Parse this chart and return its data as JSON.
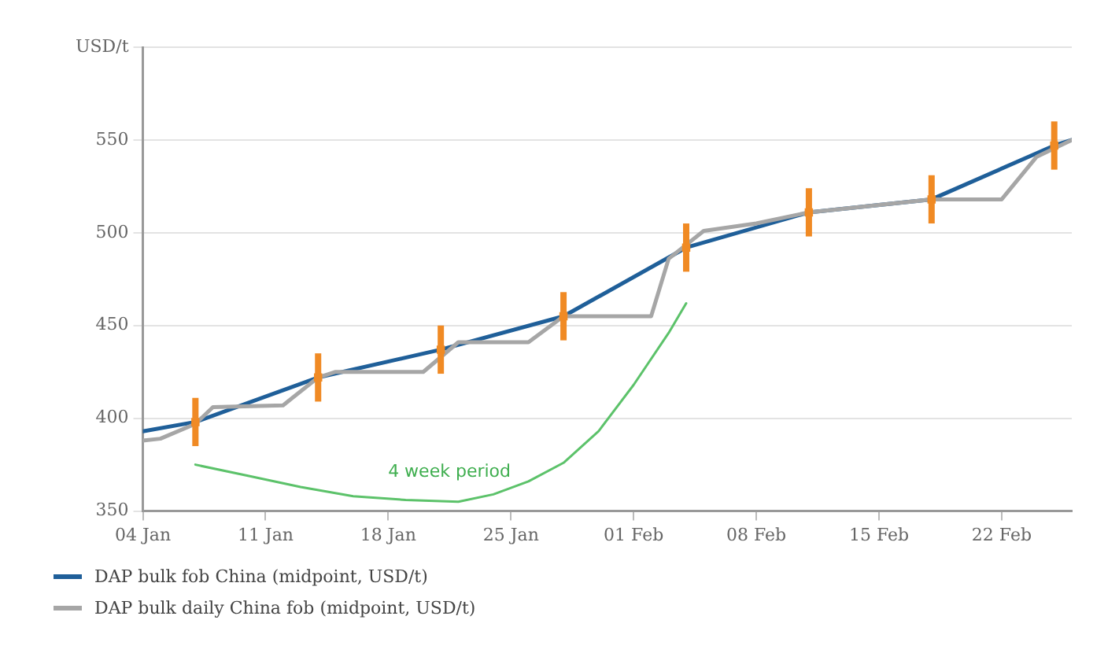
{
  "chart_data": {
    "type": "line",
    "xlim": [
      "--01-04",
      "--02-26"
    ],
    "xticks": [
      {
        "value": "--01-04",
        "label": "04 Jan"
      },
      {
        "value": "--01-11",
        "label": "11 Jan"
      },
      {
        "value": "--01-18",
        "label": "18 Jan"
      },
      {
        "value": "--01-25",
        "label": "25 Jan"
      },
      {
        "value": "--02-01",
        "label": "01 Feb"
      },
      {
        "value": "--02-08",
        "label": "08 Feb"
      },
      {
        "value": "--02-15",
        "label": "15 Feb"
      },
      {
        "value": "--02-22",
        "label": "22 Feb"
      }
    ],
    "ylim": [
      350,
      600
    ],
    "yticks": [
      350,
      400,
      450,
      500,
      550,
      {
        "value": 600,
        "label": "USD/t"
      }
    ],
    "grid": "y",
    "legend": "bottom",
    "annotations": [
      "4 week period"
    ],
    "series": [
      {
        "name": "DAP bulk daily China fob (midpoint, USD/t)",
        "color": "#a6a6a6",
        "x": [
          "--01-04",
          "--01-05",
          "--01-07",
          "--01-08",
          "--01-12",
          "--01-14",
          "--01-15",
          "--01-20",
          "--01-22",
          "--01-26",
          "--01-28",
          "--02-02",
          "--02-03",
          "--02-05",
          "--02-08",
          "--02-11",
          "--02-18",
          "--02-22",
          "--02-24",
          "--02-26"
        ],
        "values": [
          388,
          389,
          397,
          406,
          407,
          422,
          425,
          425,
          441,
          441,
          455,
          455,
          486,
          501,
          505,
          511,
          518,
          518,
          541,
          550
        ]
      },
      {
        "name": "DAP bulk fob China (midpoint, USD/t)",
        "color": "#1f5f99",
        "x": [
          "--01-04",
          "--01-07",
          "--01-14",
          "--01-21",
          "--01-28",
          "--02-04",
          "--02-11",
          "--02-18",
          "--02-25",
          "--02-26"
        ],
        "values": [
          393,
          398,
          422,
          437,
          455,
          492,
          511,
          518,
          547,
          550
        ]
      },
      {
        "color": "#5cc26a",
        "x": [
          "--01-07",
          "--01-10",
          "--01-13",
          "--01-16",
          "--01-19",
          "--01-22",
          "--01-24",
          "--01-26",
          "--01-28",
          "--01-30",
          "--02-01",
          "--02-03",
          "--02-04"
        ],
        "values": [
          375,
          369,
          363,
          358,
          356,
          355,
          359,
          366,
          376,
          393,
          418,
          446,
          462
        ]
      },
      {
        "type": "scatter",
        "color": "#f08a24",
        "marker": "square",
        "x": [
          "--01-07",
          "--01-14",
          "--01-21",
          "--01-28",
          "--02-04",
          "--02-11",
          "--02-18",
          "--02-25"
        ],
        "values": [
          398,
          422,
          437,
          455,
          492,
          511,
          518,
          547
        ],
        "errors": [
          13,
          13,
          13,
          13,
          13,
          13,
          13,
          13
        ]
      }
    ]
  }
}
